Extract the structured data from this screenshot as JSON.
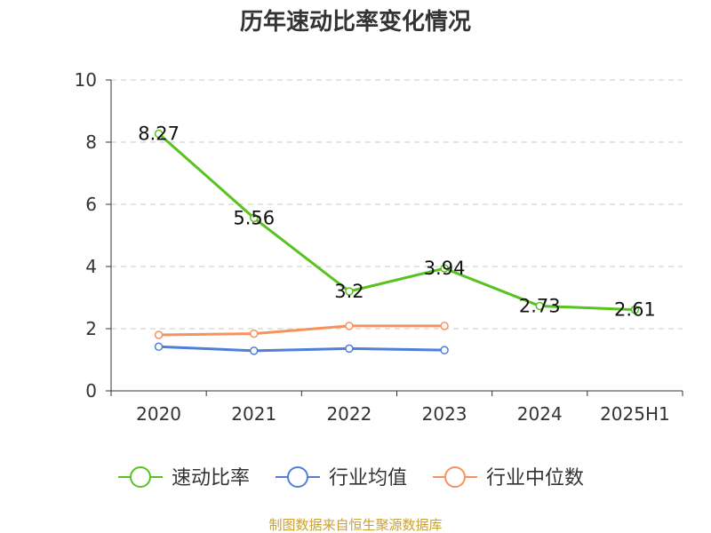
{
  "chart_data": {
    "type": "line",
    "title": "历年速动比率变化情况",
    "categories": [
      "2020",
      "2021",
      "2022",
      "2023",
      "2024",
      "2025H1"
    ],
    "ylim": [
      0,
      10
    ],
    "yticks": [
      0,
      2,
      4,
      6,
      8,
      10
    ],
    "grid": true,
    "legend_position": "bottom",
    "series": [
      {
        "name": "速动比率",
        "color": "#58c21e",
        "values": [
          8.27,
          5.56,
          3.2,
          3.94,
          2.73,
          2.61
        ],
        "labels": [
          "8.27",
          "5.56",
          "3.2",
          "3.94",
          "2.73",
          "2.61"
        ]
      },
      {
        "name": "行业均值",
        "color": "#4f7fd6",
        "values": [
          1.42,
          1.29,
          1.36,
          1.31,
          null,
          null
        ]
      },
      {
        "name": "行业中位数",
        "color": "#f5925e",
        "values": [
          1.8,
          1.84,
          2.09,
          2.09,
          null,
          null
        ]
      }
    ]
  },
  "source_note": "制图数据来自恒生聚源数据库"
}
